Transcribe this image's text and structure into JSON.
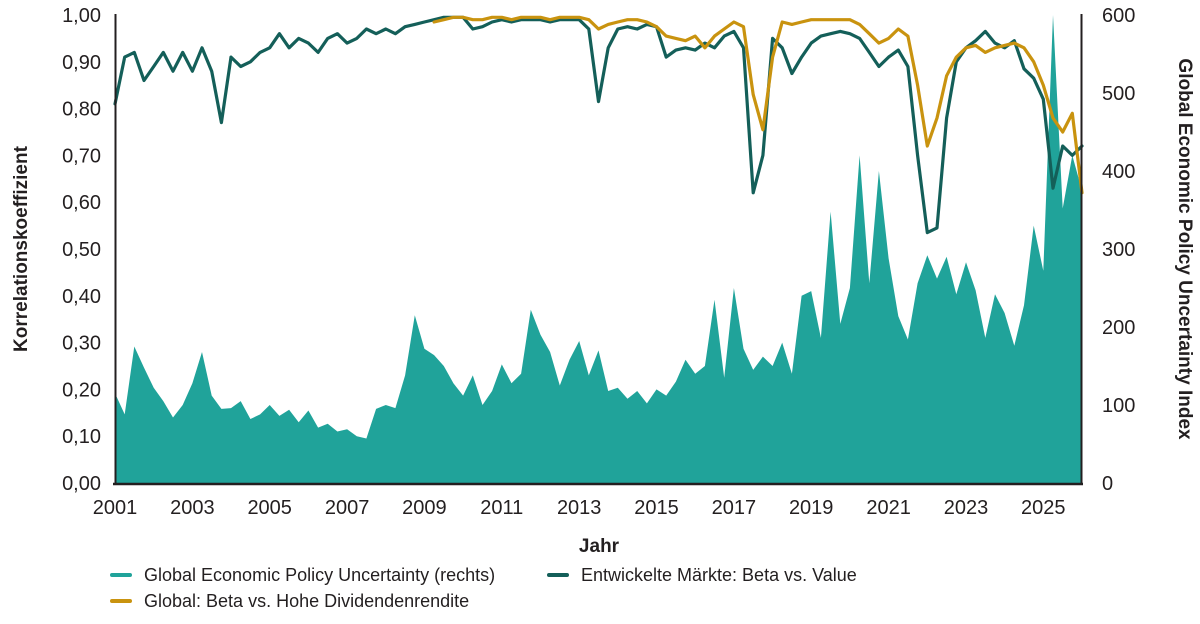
{
  "colors": {
    "background": "#FFFFFF",
    "text": "#231F20",
    "axis_line": "#231F20",
    "area_teal": "#20A39A",
    "dark_teal": "#145F59",
    "gold": "#C9930F"
  },
  "chart_data": {
    "type": "combo-area-line",
    "title": "",
    "xlabel": "Jahr",
    "ylabel_left": "Korrelationskoeffizient",
    "ylabel_right": "Global Economic Policy Uncertainty Index",
    "x_start": 2001,
    "x_step": 0.25,
    "x_ticks": [
      2001,
      2003,
      2005,
      2007,
      2009,
      2011,
      2013,
      2015,
      2017,
      2019,
      2021,
      2023,
      2025
    ],
    "left_axis": {
      "min": 0,
      "max": 1,
      "tick_labels": [
        "1,00",
        "0,90",
        "0,80",
        "0,70",
        "0,60",
        "0,50",
        "0,40",
        "0,30",
        "0,20",
        "0,10",
        "0,00"
      ],
      "tick_values": [
        1.0,
        0.9,
        0.8,
        0.7,
        0.6,
        0.5,
        0.4,
        0.3,
        0.2,
        0.1,
        0.0
      ]
    },
    "right_axis": {
      "min": 0,
      "max": 600,
      "tick_labels": [
        "600",
        "500",
        "400",
        "300",
        "200",
        "100",
        "0"
      ],
      "tick_values": [
        600,
        500,
        400,
        300,
        200,
        100,
        0
      ]
    },
    "series": [
      {
        "name": "Global Economic Policy Uncertainty (rechts)",
        "axis": "right",
        "style": "area",
        "color": "#20A39A",
        "values": [
          115,
          88,
          175,
          148,
          122,
          105,
          84,
          100,
          128,
          168,
          112,
          95,
          96,
          105,
          82,
          88,
          100,
          86,
          94,
          78,
          93,
          71,
          76,
          66,
          69,
          60,
          57,
          95,
          100,
          96,
          138,
          215,
          172,
          164,
          150,
          128,
          112,
          138,
          100,
          118,
          152,
          128,
          140,
          222,
          190,
          168,
          125,
          158,
          182,
          138,
          170,
          118,
          122,
          108,
          118,
          102,
          120,
          112,
          130,
          158,
          140,
          150,
          235,
          135,
          250,
          172,
          145,
          162,
          150,
          180,
          140,
          240,
          246,
          186,
          348,
          204,
          250,
          420,
          256,
          400,
          288,
          214,
          184,
          256,
          292,
          262,
          290,
          242,
          283,
          247,
          186,
          242,
          218,
          176,
          228,
          330,
          272,
          600,
          352,
          420,
          375
        ]
      },
      {
        "name": "Entwickelte Märkte: Beta vs. Value",
        "axis": "left",
        "style": "line",
        "color": "#145F59",
        "values": [
          0.81,
          0.91,
          0.92,
          0.86,
          0.89,
          0.92,
          0.88,
          0.92,
          0.88,
          0.93,
          0.88,
          0.77,
          0.91,
          0.89,
          0.9,
          0.92,
          0.93,
          0.96,
          0.93,
          0.95,
          0.94,
          0.92,
          0.95,
          0.96,
          0.94,
          0.95,
          0.97,
          0.96,
          0.97,
          0.96,
          0.975,
          0.98,
          0.985,
          0.99,
          0.995,
          0.995,
          0.995,
          0.97,
          0.975,
          0.985,
          0.99,
          0.985,
          0.99,
          0.99,
          0.99,
          0.985,
          0.99,
          0.99,
          0.99,
          0.97,
          0.815,
          0.93,
          0.97,
          0.975,
          0.97,
          0.98,
          0.975,
          0.91,
          0.925,
          0.93,
          0.925,
          0.94,
          0.93,
          0.955,
          0.965,
          0.93,
          0.62,
          0.7,
          0.95,
          0.93,
          0.875,
          0.91,
          0.94,
          0.955,
          0.96,
          0.965,
          0.96,
          0.95,
          0.92,
          0.89,
          0.91,
          0.925,
          0.89,
          0.7,
          0.535,
          0.545,
          0.78,
          0.9,
          0.93,
          0.945,
          0.965,
          0.94,
          0.93,
          0.945,
          0.885,
          0.865,
          0.82,
          0.63,
          0.72,
          0.7,
          0.72
        ]
      },
      {
        "name": "Global: Beta vs. Hohe Dividendenrendite",
        "axis": "left",
        "style": "line",
        "color": "#C9930F",
        "values": [
          null,
          null,
          null,
          null,
          null,
          null,
          null,
          null,
          null,
          null,
          null,
          null,
          null,
          null,
          null,
          null,
          null,
          null,
          null,
          null,
          null,
          null,
          null,
          null,
          null,
          null,
          null,
          null,
          null,
          null,
          null,
          null,
          null,
          0.985,
          0.99,
          0.995,
          0.995,
          0.99,
          0.99,
          0.995,
          0.995,
          0.99,
          0.995,
          0.995,
          0.995,
          0.99,
          0.995,
          0.995,
          0.995,
          0.99,
          0.97,
          0.98,
          0.985,
          0.99,
          0.99,
          0.985,
          0.975,
          0.955,
          0.95,
          0.945,
          0.955,
          0.93,
          0.955,
          0.97,
          0.985,
          0.975,
          0.83,
          0.755,
          0.91,
          0.985,
          0.98,
          0.985,
          0.99,
          0.99,
          0.99,
          0.99,
          0.99,
          0.98,
          0.96,
          0.94,
          0.95,
          0.97,
          0.955,
          0.85,
          0.72,
          0.78,
          0.87,
          0.91,
          0.93,
          0.935,
          0.92,
          0.93,
          0.935,
          0.94,
          0.93,
          0.9,
          0.85,
          0.78,
          0.75,
          0.79,
          0.62
        ]
      }
    ],
    "legend_position": "bottom-left",
    "grid": false
  }
}
